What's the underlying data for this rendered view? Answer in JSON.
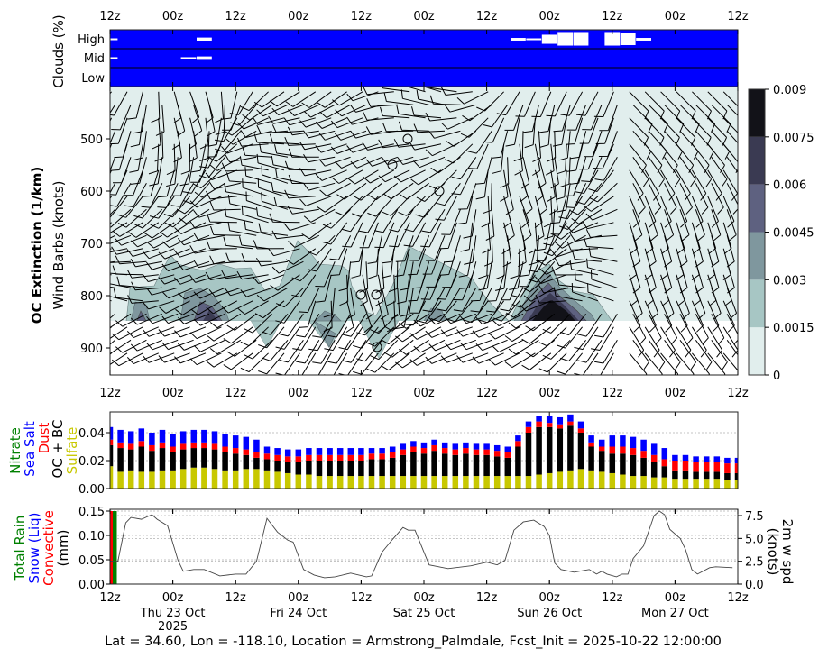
{
  "footer": "Lat = 34.60, Lon = -118.10, Location = Armstrong_Palmdale, Fcst_Init = 2025-10-22 12:00:00",
  "time_ticks": [
    "12z",
    "00z",
    "12z",
    "00z",
    "12z",
    "00z",
    "12z",
    "00z",
    "12z",
    "00z",
    "12z"
  ],
  "date_labels": [
    "Thu 23 Oct",
    "Fri 24 Oct",
    "Sat 25 Oct",
    "Sun 26 Oct",
    "Mon 27 Oct"
  ],
  "year_label": "2025",
  "chart_data": [
    {
      "type": "heatmap",
      "name": "clouds",
      "ylabel": "Clouds (%)",
      "levels": [
        "High",
        "Mid",
        "Low"
      ],
      "x_unit": "hours since 2025-10-22 12z",
      "xlim": [
        0,
        120
      ],
      "colors": {
        "background": "#0000ff",
        "cloud": "#ffffff"
      },
      "cells": [
        {
          "level": "High",
          "hour": 0,
          "fraction": 0.08
        },
        {
          "level": "High",
          "hour": 18,
          "fraction": 0.18
        },
        {
          "level": "High",
          "hour": 78,
          "fraction": 0.14
        },
        {
          "level": "High",
          "hour": 81,
          "fraction": 0.06
        },
        {
          "level": "High",
          "hour": 84,
          "fraction": 0.48
        },
        {
          "level": "High",
          "hour": 87,
          "fraction": 0.67
        },
        {
          "level": "High",
          "hour": 90,
          "fraction": 0.67
        },
        {
          "level": "High",
          "hour": 96,
          "fraction": 0.67
        },
        {
          "level": "High",
          "hour": 99,
          "fraction": 0.62
        },
        {
          "level": "High",
          "hour": 102,
          "fraction": 0.14
        },
        {
          "level": "Mid",
          "hour": 0,
          "fraction": 0.1
        },
        {
          "level": "Mid",
          "hour": 15,
          "fraction": 0.1
        },
        {
          "level": "Mid",
          "hour": 18,
          "fraction": 0.18
        }
      ]
    },
    {
      "type": "heatmap",
      "name": "oc-extinction",
      "ylabel": "OC Extinction (1/km)",
      "ylabel2": "Wind Barbs (knots)",
      "yticks": [
        "500",
        "600",
        "700",
        "800",
        "900"
      ],
      "ylim": [
        950,
        400
      ],
      "colorbar": {
        "ticks": [
          "0",
          "0.0015",
          "0.003",
          "0.0045",
          "0.006",
          "0.0075",
          "0.009"
        ],
        "colors": [
          "#e1eeed",
          "#a7c6c4",
          "#7f979e",
          "#5e6180",
          "#3a3a52",
          "#121218"
        ]
      },
      "calm_label": "calm"
    },
    {
      "type": "bar",
      "name": "aerosol",
      "stacked": true,
      "x_step_hours": 2,
      "ylim": [
        0,
        0.055
      ],
      "yticks": [
        "0.00",
        "0.02",
        "0.04"
      ],
      "legend": [
        {
          "name": "Nitrate",
          "color": "#008000"
        },
        {
          "name": "Sea Salt",
          "color": "#0000ff"
        },
        {
          "name": "Dust",
          "color": "#ff0000"
        },
        {
          "name": "OC + BC",
          "color": "#000000"
        },
        {
          "name": "Sulfate",
          "color": "#c8c800"
        }
      ],
      "series": [
        {
          "name": "Sulfate",
          "color": "#c8c800",
          "values": [
            0.016,
            0.012,
            0.013,
            0.012,
            0.012,
            0.013,
            0.013,
            0.014,
            0.015,
            0.015,
            0.014,
            0.013,
            0.013,
            0.014,
            0.014,
            0.013,
            0.012,
            0.011,
            0.01,
            0.01,
            0.009,
            0.009,
            0.009,
            0.009,
            0.009,
            0.009,
            0.009,
            0.009,
            0.009,
            0.009,
            0.009,
            0.009,
            0.009,
            0.009,
            0.009,
            0.009,
            0.009,
            0.009,
            0.009,
            0.009,
            0.009,
            0.01,
            0.011,
            0.012,
            0.013,
            0.014,
            0.013,
            0.012,
            0.011,
            0.01,
            0.009,
            0.009,
            0.008,
            0.008,
            0.007,
            0.007,
            0.007,
            0.007,
            0.007,
            0.006,
            0.006
          ]
        },
        {
          "name": "OC + BC",
          "color": "#000000",
          "values": [
            0.015,
            0.017,
            0.015,
            0.018,
            0.015,
            0.016,
            0.013,
            0.014,
            0.014,
            0.014,
            0.014,
            0.013,
            0.012,
            0.01,
            0.008,
            0.008,
            0.008,
            0.008,
            0.009,
            0.01,
            0.011,
            0.011,
            0.011,
            0.011,
            0.011,
            0.012,
            0.012,
            0.013,
            0.015,
            0.017,
            0.016,
            0.018,
            0.016,
            0.015,
            0.016,
            0.015,
            0.015,
            0.014,
            0.013,
            0.021,
            0.031,
            0.034,
            0.033,
            0.031,
            0.032,
            0.026,
            0.017,
            0.015,
            0.014,
            0.015,
            0.015,
            0.013,
            0.011,
            0.008,
            0.006,
            0.006,
            0.005,
            0.005,
            0.005,
            0.005,
            0.005
          ]
        },
        {
          "name": "Dust",
          "color": "#ff0000",
          "values": [
            0.004,
            0.004,
            0.004,
            0.004,
            0.004,
            0.004,
            0.004,
            0.004,
            0.004,
            0.004,
            0.004,
            0.004,
            0.004,
            0.004,
            0.004,
            0.004,
            0.004,
            0.004,
            0.004,
            0.004,
            0.004,
            0.004,
            0.004,
            0.004,
            0.004,
            0.004,
            0.004,
            0.004,
            0.004,
            0.004,
            0.004,
            0.004,
            0.004,
            0.004,
            0.004,
            0.004,
            0.004,
            0.004,
            0.004,
            0.004,
            0.004,
            0.004,
            0.003,
            0.003,
            0.003,
            0.003,
            0.003,
            0.003,
            0.005,
            0.005,
            0.005,
            0.005,
            0.005,
            0.005,
            0.007,
            0.007,
            0.007,
            0.007,
            0.007,
            0.007,
            0.007
          ]
        },
        {
          "name": "Sea Salt",
          "color": "#0000ff",
          "values": [
            0.009,
            0.009,
            0.009,
            0.009,
            0.009,
            0.009,
            0.009,
            0.009,
            0.009,
            0.009,
            0.009,
            0.009,
            0.009,
            0.009,
            0.009,
            0.005,
            0.005,
            0.005,
            0.005,
            0.005,
            0.005,
            0.005,
            0.005,
            0.005,
            0.005,
            0.004,
            0.004,
            0.004,
            0.004,
            0.004,
            0.004,
            0.004,
            0.004,
            0.004,
            0.004,
            0.004,
            0.004,
            0.004,
            0.004,
            0.004,
            0.004,
            0.004,
            0.005,
            0.005,
            0.005,
            0.005,
            0.005,
            0.005,
            0.008,
            0.008,
            0.008,
            0.008,
            0.008,
            0.008,
            0.004,
            0.004,
            0.004,
            0.004,
            0.004,
            0.004,
            0.004
          ]
        },
        {
          "name": "Nitrate",
          "color": "#008000",
          "values": [
            0,
            0,
            0,
            0,
            0,
            0,
            0,
            0,
            0,
            0,
            0,
            0,
            0,
            0,
            0,
            0,
            0,
            0,
            0,
            0,
            0,
            0,
            0,
            0,
            0,
            0,
            0,
            0,
            0,
            0,
            0,
            0,
            0,
            0,
            0,
            0,
            0,
            0,
            0,
            0,
            0,
            0,
            0,
            0,
            0,
            0,
            0,
            0,
            0,
            0,
            0,
            0,
            0,
            0,
            0,
            0,
            0,
            0,
            0,
            0,
            0
          ]
        }
      ]
    },
    {
      "type": "line",
      "name": "precip-wind",
      "ylim": [
        0,
        0.15
      ],
      "yticks": [
        "0.00",
        "0.05",
        "0.10",
        "0.15"
      ],
      "ylim_right": [
        0,
        8.2
      ],
      "yticks_right": [
        "0.0",
        "2.5",
        "5.0",
        "7.5"
      ],
      "left_labels": [
        {
          "text": "Total Rain",
          "color": "#008000"
        },
        {
          "text": "Snow (Liq)",
          "color": "#0000ff"
        },
        {
          "text": "Convective",
          "color": "#ff0000"
        },
        {
          "text": "(mm)",
          "color": "#000000"
        }
      ],
      "right_labels": [
        "2m w spd",
        "(knots)"
      ],
      "precip_bars": [
        {
          "hour": 0,
          "total_rain": 0.15,
          "convective": 0.15,
          "snow": 0
        }
      ],
      "wind_speed": {
        "hours": [
          0,
          1.5,
          3,
          4,
          6,
          8,
          9,
          11,
          13,
          14,
          16,
          18,
          21,
          24,
          26,
          28,
          30,
          32,
          34,
          35,
          37,
          39,
          41,
          43,
          46,
          49,
          50,
          52,
          54,
          56,
          57,
          58.3,
          61,
          64.6,
          69,
          72,
          74,
          75.5,
          77.2,
          79,
          81,
          83,
          84,
          85,
          86.2,
          88.7,
          91.6,
          93,
          94,
          95,
          96.8,
          97.9,
          99,
          100,
          102,
          104,
          105,
          106,
          107,
          109,
          110,
          111.2,
          112.3,
          114.6,
          115.8,
          119
        ],
        "knots": [
          2.5,
          2.5,
          6.7,
          7.3,
          7.1,
          7.6,
          7.1,
          6.4,
          2.6,
          1.4,
          1.6,
          1.6,
          0.9,
          1.1,
          1.1,
          2.5,
          7.2,
          5.7,
          4.8,
          4.6,
          1.6,
          1.0,
          0.7,
          0.8,
          1.2,
          0.8,
          0.9,
          3.5,
          4.9,
          6.2,
          5.9,
          5.9,
          2.1,
          1.7,
          2.0,
          2.4,
          2.1,
          2.6,
          5.9,
          6.8,
          7.0,
          6.3,
          5.3,
          2.3,
          1.6,
          1.3,
          1.6,
          1.1,
          1.4,
          1.1,
          0.8,
          1.1,
          1.1,
          2.8,
          4.2,
          7.5,
          8.0,
          7.6,
          6.0,
          5.0,
          3.8,
          1.6,
          1.1,
          1.8,
          1.9,
          1.8
        ]
      }
    }
  ]
}
